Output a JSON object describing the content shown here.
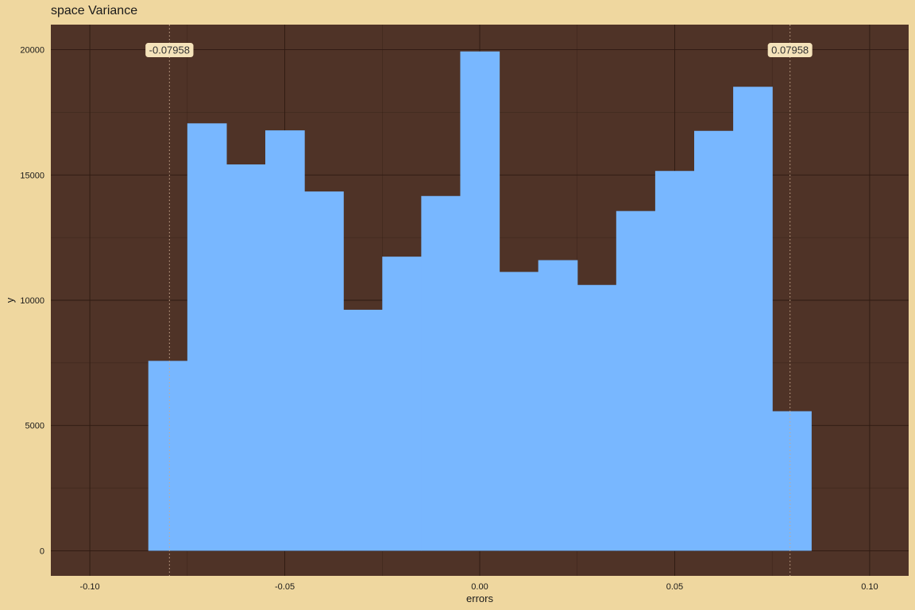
{
  "chart_data": {
    "type": "bar",
    "title": "space Variance",
    "xlabel": "errors",
    "ylabel": "y",
    "xlim": [
      -0.11,
      0.11
    ],
    "ylim": [
      -1000,
      21000
    ],
    "x_ticks": [
      -0.1,
      -0.05,
      0.0,
      0.05,
      0.1
    ],
    "x_tick_labels": [
      "-0.10",
      "-0.05",
      "0.00",
      "0.05",
      "0.10"
    ],
    "y_ticks": [
      0,
      5000,
      10000,
      15000,
      20000
    ],
    "y_tick_labels": [
      "0",
      "5000",
      "10000",
      "15000",
      "20000"
    ],
    "grid": true,
    "bin_width": 0.01,
    "bins": [
      {
        "x0": -0.085,
        "x1": -0.075,
        "count": 7580
      },
      {
        "x0": -0.075,
        "x1": -0.065,
        "count": 17060
      },
      {
        "x0": -0.065,
        "x1": -0.055,
        "count": 15420
      },
      {
        "x0": -0.055,
        "x1": -0.045,
        "count": 16780
      },
      {
        "x0": -0.045,
        "x1": -0.035,
        "count": 14340
      },
      {
        "x0": -0.035,
        "x1": -0.025,
        "count": 9620
      },
      {
        "x0": -0.025,
        "x1": -0.015,
        "count": 11740
      },
      {
        "x0": -0.015,
        "x1": -0.005,
        "count": 14160
      },
      {
        "x0": -0.005,
        "x1": 0.005,
        "count": 19930
      },
      {
        "x0": 0.005,
        "x1": 0.015,
        "count": 11130
      },
      {
        "x0": 0.015,
        "x1": 0.025,
        "count": 11600
      },
      {
        "x0": 0.025,
        "x1": 0.035,
        "count": 10610
      },
      {
        "x0": 0.035,
        "x1": 0.045,
        "count": 13560
      },
      {
        "x0": 0.045,
        "x1": 0.055,
        "count": 15160
      },
      {
        "x0": 0.055,
        "x1": 0.065,
        "count": 16760
      },
      {
        "x0": 0.065,
        "x1": 0.075,
        "count": 18520
      },
      {
        "x0": 0.075,
        "x1": 0.085,
        "count": 5570
      }
    ],
    "reference_lines": [
      {
        "x": -0.07958,
        "label": "-0.07958"
      },
      {
        "x": 0.07958,
        "label": "0.07958"
      }
    ],
    "colors": {
      "page_background": "#efd79f",
      "panel_background": "#4f3327",
      "bar_fill": "#78b7ff",
      "grid_line": "#2e1a12",
      "reference_line": "#c9a98f",
      "label_box": "#f5e3ba",
      "text": "#1a1a1a"
    }
  }
}
